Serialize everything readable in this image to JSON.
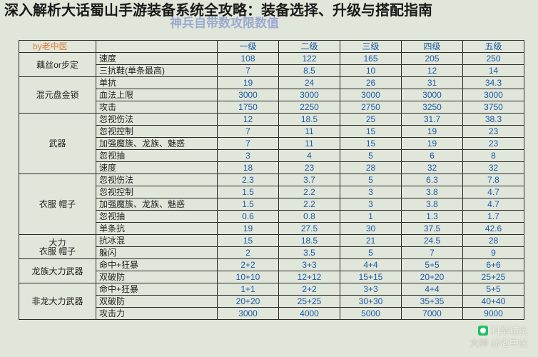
{
  "heading": "深入解析大话蜀山手游装备系统全攻略：装备选择、升级与搭配指南",
  "watermark_top": "神兵自带数攻限数值",
  "byline": "by老中医",
  "columns": [
    "一级",
    "二级",
    "三级",
    "四级",
    "五级"
  ],
  "groups": [
    {
      "name": "藕丝or步定",
      "rows": [
        {
          "attr": "速度",
          "v": [
            "108",
            "122",
            "165",
            "205",
            "250"
          ]
        },
        {
          "attr": "三抗鞋(单条最高)",
          "v": [
            "7",
            "8.5",
            "10",
            "12",
            "14"
          ]
        }
      ]
    },
    {
      "name": "混元盘金锁",
      "rows": [
        {
          "attr": "单抗",
          "v": [
            "19",
            "24",
            "26",
            "31",
            "34.3"
          ]
        },
        {
          "attr": "血法上限",
          "v": [
            "3000",
            "3000",
            "3000",
            "3000",
            "3000"
          ]
        },
        {
          "attr": "攻击",
          "v": [
            "1750",
            "2250",
            "2750",
            "3250",
            "3750"
          ]
        }
      ]
    },
    {
      "name": "武器",
      "rows": [
        {
          "attr": "忽视伤法",
          "v": [
            "12",
            "18.5",
            "25",
            "31.7",
            "38.3"
          ]
        },
        {
          "attr": "忽视控制",
          "v": [
            "7",
            "11",
            "15",
            "19",
            "23"
          ]
        },
        {
          "attr": "加强魔族、龙族、魅惑",
          "v": [
            "7",
            "11",
            "15",
            "19",
            "23"
          ]
        },
        {
          "attr": "忽视抽",
          "v": [
            "3",
            "4",
            "5",
            "6",
            "8"
          ]
        },
        {
          "attr": "速度",
          "v": [
            "18",
            "23",
            "28",
            "32",
            "32"
          ]
        }
      ]
    },
    {
      "name": "衣服 帽子",
      "rows": [
        {
          "attr": "忽视伤法",
          "v": [
            "2.3",
            "3.7",
            "5",
            "6.3",
            "7.8"
          ]
        },
        {
          "attr": "忽视控制",
          "v": [
            "1.5",
            "2.2",
            "3",
            "3.8",
            "4.7"
          ]
        },
        {
          "attr": "加强魔族、龙族、魅惑",
          "v": [
            "1.5",
            "2.2",
            "3",
            "3.8",
            "4.7"
          ]
        },
        {
          "attr": "忽视抽",
          "v": [
            "0.6",
            "0.8",
            "1",
            "1.3",
            "1.7"
          ]
        },
        {
          "attr": "单条抗",
          "v": [
            "19",
            "27.5",
            "30",
            "37.5",
            "42.6"
          ]
        }
      ]
    },
    {
      "name": "大力\n衣服 帽子",
      "rows": [
        {
          "attr": "抗冰混",
          "v": [
            "15",
            "18.5",
            "21",
            "24.5",
            "28"
          ]
        },
        {
          "attr": "躲闪",
          "v": [
            "2",
            "3.5",
            "5",
            "7",
            "9"
          ]
        }
      ]
    },
    {
      "name": "龙族大力武器",
      "rows": [
        {
          "attr": "命中+狂暴",
          "v": [
            "2+2",
            "3+3",
            "4+4",
            "5+5",
            "6+6"
          ]
        },
        {
          "attr": "双破防",
          "v": [
            "10+10",
            "12+12",
            "15+15",
            "20+20",
            "25+25"
          ]
        }
      ]
    },
    {
      "name": "非龙大力武器",
      "rows": [
        {
          "attr": "命中+狂暴",
          "v": [
            "1+1",
            "2+2",
            "3+3",
            "4+4",
            "5+5"
          ]
        },
        {
          "attr": "双破防",
          "v": [
            "20+20",
            "25+25",
            "30+30",
            "35+35",
            "40+40"
          ]
        },
        {
          "attr": "攻击力",
          "v": [
            "3000",
            "4000",
            "5000",
            "7000",
            "9000"
          ]
        }
      ]
    }
  ],
  "wm_bottom": {
    "line1": "科举精灵",
    "line2_prefix": "大神",
    "line2": "@老中医"
  }
}
